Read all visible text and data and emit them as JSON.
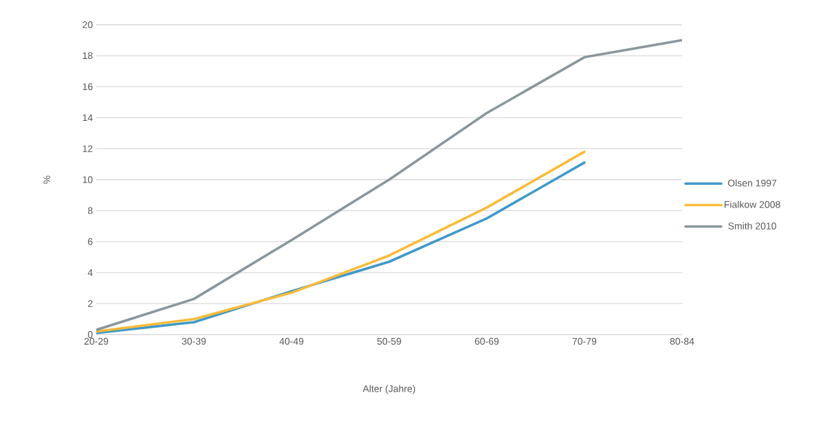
{
  "chart_data": {
    "type": "line",
    "xlabel": "Alter (Jahre)",
    "ylabel": "%",
    "categories": [
      "20-29",
      "30-39",
      "40-49",
      "50-59",
      "60-69",
      "70-79",
      "80-84"
    ],
    "series": [
      {
        "name": "Olsen 1997",
        "color": "#4199c9",
        "values": [
          0.1,
          0.8,
          2.8,
          4.7,
          7.5,
          11.1,
          null
        ]
      },
      {
        "name": "Fialkow 2008",
        "color": "#f9bb38",
        "values": [
          0.2,
          1.0,
          2.7,
          5.1,
          8.2,
          11.8,
          null
        ]
      },
      {
        "name": "Smith 2010",
        "color": "#8a969c",
        "values": [
          0.3,
          2.3,
          6.1,
          10.0,
          14.3,
          17.9,
          19.0
        ]
      }
    ],
    "ylim": [
      0,
      20
    ],
    "yticks": [
      0,
      2,
      4,
      6,
      8,
      10,
      12,
      14,
      16,
      18,
      20
    ],
    "grid": "y",
    "legend": "right"
  }
}
